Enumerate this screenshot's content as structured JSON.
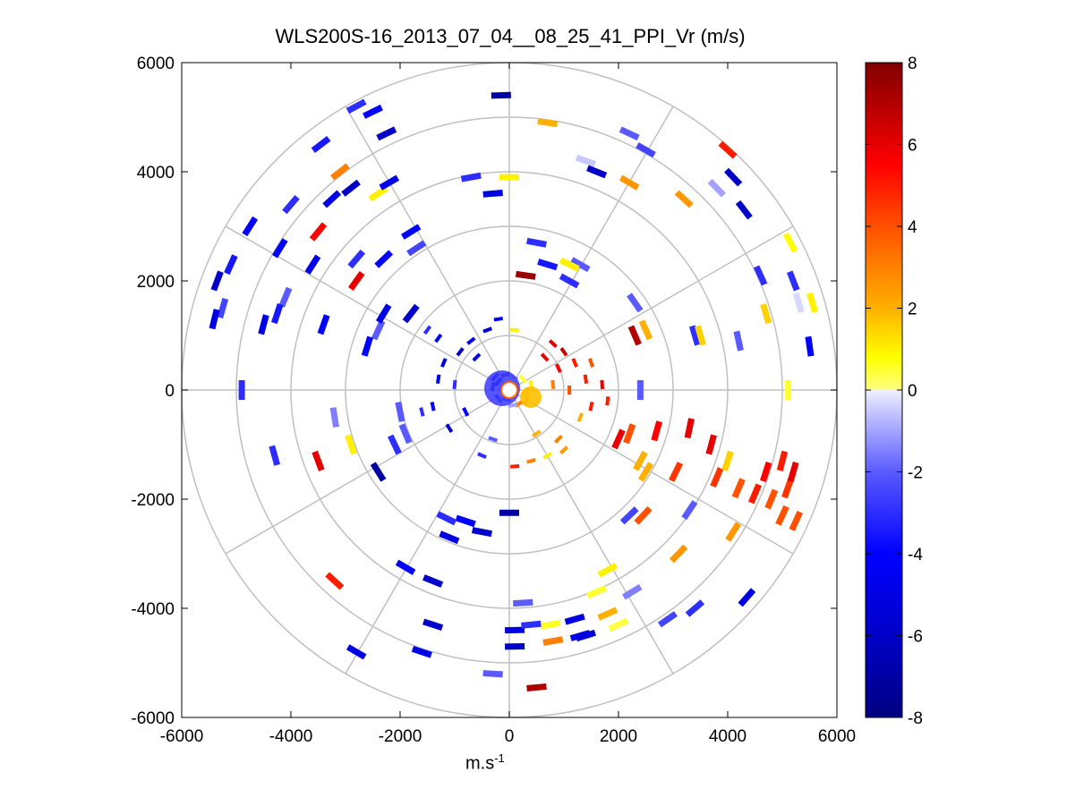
{
  "chart_data": {
    "type": "scatter",
    "subtype": "polar-ppi",
    "title": "WLS200S-16_2013_07_04__08_25_41_PPI_Vr (m/s)",
    "xlabel": "m.s",
    "xlabel_superscript": "-1",
    "ylabel": "",
    "xlim": [
      -6000,
      6000
    ],
    "ylim": [
      -6000,
      6000
    ],
    "xticks": [
      "-6000",
      "-4000",
      "-2000",
      "0",
      "2000",
      "4000",
      "6000"
    ],
    "yticks": [
      "6000",
      "4000",
      "2000",
      "0",
      "-2000",
      "-4000",
      "-6000"
    ],
    "grid": true,
    "polar_grid": {
      "ring_radii": [
        1000,
        2000,
        3000,
        4000,
        5000,
        6000
      ],
      "spoke_angles_deg": [
        0,
        30,
        60,
        90,
        120,
        150,
        180,
        210,
        240,
        270,
        300,
        330
      ]
    },
    "colorbar": {
      "min": -8,
      "max": 8,
      "ticks": [
        "8",
        "6",
        "4",
        "2",
        "0",
        "-2",
        "-4",
        "-6",
        "-8"
      ],
      "stops": [
        {
          "v": -8,
          "color": "#000080"
        },
        {
          "v": -6,
          "color": "#0000c8"
        },
        {
          "v": -4,
          "color": "#0000ff"
        },
        {
          "v": -2,
          "color": "#5a5aff"
        },
        {
          "v": -0.5,
          "color": "#c8c8ff"
        },
        {
          "v": 0,
          "color": "#f0f0ff"
        },
        {
          "v": 0.01,
          "color": "#ffff80"
        },
        {
          "v": 0.8,
          "color": "#ffff00"
        },
        {
          "v": 2,
          "color": "#ffb000"
        },
        {
          "v": 4,
          "color": "#ff5000"
        },
        {
          "v": 5.5,
          "color": "#ff0000"
        },
        {
          "v": 8,
          "color": "#800000"
        }
      ]
    },
    "points": [
      {
        "x": -150,
        "y": 5400,
        "v": -7
      },
      {
        "x": -2500,
        "y": 5100,
        "v": -4
      },
      {
        "x": -2800,
        "y": 5200,
        "v": -3
      },
      {
        "x": -2250,
        "y": 4700,
        "v": -6
      },
      {
        "x": -3450,
        "y": 4500,
        "v": -3.5
      },
      {
        "x": -3100,
        "y": 4000,
        "v": 3
      },
      {
        "x": -3250,
        "y": 3500,
        "v": -5
      },
      {
        "x": -2900,
        "y": 3700,
        "v": -6
      },
      {
        "x": -4750,
        "y": 3000,
        "v": -4
      },
      {
        "x": -4000,
        "y": 3400,
        "v": -3
      },
      {
        "x": -5350,
        "y": 2000,
        "v": -6
      },
      {
        "x": -5250,
        "y": 1500,
        "v": -2.5
      },
      {
        "x": -5100,
        "y": 2300,
        "v": -3.5
      },
      {
        "x": -5400,
        "y": 1300,
        "v": -5
      },
      {
        "x": -4200,
        "y": 2600,
        "v": -4
      },
      {
        "x": -3600,
        "y": 2300,
        "v": -5
      },
      {
        "x": -4100,
        "y": 1700,
        "v": -2
      },
      {
        "x": -4250,
        "y": 1400,
        "v": -3.5
      },
      {
        "x": -4500,
        "y": 1200,
        "v": -5
      },
      {
        "x": -3500,
        "y": 2900,
        "v": 5.5
      },
      {
        "x": -2400,
        "y": 3600,
        "v": 1
      },
      {
        "x": -2200,
        "y": 3800,
        "v": -5
      },
      {
        "x": -2800,
        "y": 2400,
        "v": -3
      },
      {
        "x": -2300,
        "y": 2400,
        "v": -4
      },
      {
        "x": -2800,
        "y": 2000,
        "v": 6
      },
      {
        "x": -3400,
        "y": 1200,
        "v": -4
      },
      {
        "x": -2400,
        "y": 1100,
        "v": -2
      },
      {
        "x": -2600,
        "y": 800,
        "v": -4
      },
      {
        "x": -2300,
        "y": 1400,
        "v": -5
      },
      {
        "x": -1800,
        "y": 1400,
        "v": -6
      },
      {
        "x": -1500,
        "y": 1100,
        "v": -3
      },
      {
        "x": -1300,
        "y": 950,
        "v": -4
      },
      {
        "x": -700,
        "y": 3900,
        "v": -3
      },
      {
        "x": -300,
        "y": 3600,
        "v": -5
      },
      {
        "x": 0,
        "y": 3900,
        "v": 1
      },
      {
        "x": -1700,
        "y": 2600,
        "v": -2.5
      },
      {
        "x": -1800,
        "y": 2900,
        "v": -4
      },
      {
        "x": -4900,
        "y": 0,
        "v": -3
      },
      {
        "x": -3200,
        "y": -500,
        "v": -1.5
      },
      {
        "x": -4300,
        "y": -1200,
        "v": -3
      },
      {
        "x": -3500,
        "y": -1300,
        "v": 6
      },
      {
        "x": -2900,
        "y": -1000,
        "v": 1
      },
      {
        "x": -2400,
        "y": -1500,
        "v": -7
      },
      {
        "x": -2100,
        "y": -1000,
        "v": -3
      },
      {
        "x": -1900,
        "y": -800,
        "v": -2
      },
      {
        "x": -1600,
        "y": -400,
        "v": -3
      },
      {
        "x": -2000,
        "y": -400,
        "v": -2
      },
      {
        "x": -3200,
        "y": -3500,
        "v": 5
      },
      {
        "x": -1900,
        "y": -3250,
        "v": -4
      },
      {
        "x": -1400,
        "y": -3500,
        "v": -6
      },
      {
        "x": -1400,
        "y": -4300,
        "v": -6
      },
      {
        "x": -2800,
        "y": -4800,
        "v": -5
      },
      {
        "x": -1600,
        "y": -4800,
        "v": -5
      },
      {
        "x": -300,
        "y": -5200,
        "v": -2
      },
      {
        "x": 500,
        "y": -5450,
        "v": 7
      },
      {
        "x": -800,
        "y": -2400,
        "v": -4
      },
      {
        "x": -1100,
        "y": -2700,
        "v": -5
      },
      {
        "x": -500,
        "y": -2600,
        "v": -6
      },
      {
        "x": 0,
        "y": -2250,
        "v": -7
      },
      {
        "x": -1150,
        "y": -2350,
        "v": -3
      },
      {
        "x": 250,
        "y": -3900,
        "v": -2
      },
      {
        "x": 750,
        "y": -4300,
        "v": 0.6
      },
      {
        "x": 100,
        "y": -4400,
        "v": -5
      },
      {
        "x": 400,
        "y": -4300,
        "v": -3
      },
      {
        "x": 800,
        "y": -4600,
        "v": 3
      },
      {
        "x": 1400,
        "y": -4500,
        "v": -6
      },
      {
        "x": 1200,
        "y": -4200,
        "v": -5
      },
      {
        "x": 1300,
        "y": -4500,
        "v": -5
      },
      {
        "x": 100,
        "y": -4700,
        "v": -6
      },
      {
        "x": 1800,
        "y": -4100,
        "v": 2
      },
      {
        "x": 1600,
        "y": -3700,
        "v": 0.5
      },
      {
        "x": 1800,
        "y": -3300,
        "v": 1
      },
      {
        "x": 2000,
        "y": -4300,
        "v": 0.4
      },
      {
        "x": 2250,
        "y": -3700,
        "v": -1.5
      },
      {
        "x": 2900,
        "y": -4200,
        "v": -2.5
      },
      {
        "x": 3400,
        "y": -4000,
        "v": -3
      },
      {
        "x": 4350,
        "y": -3800,
        "v": -5
      },
      {
        "x": 3100,
        "y": -3000,
        "v": 2.5
      },
      {
        "x": 4100,
        "y": -2600,
        "v": 2.5
      },
      {
        "x": 3300,
        "y": -2200,
        "v": -2
      },
      {
        "x": 2200,
        "y": -2300,
        "v": -2.5
      },
      {
        "x": 2450,
        "y": -2300,
        "v": 4
      },
      {
        "x": 2500,
        "y": -1500,
        "v": 2
      },
      {
        "x": 3050,
        "y": -1500,
        "v": 4.5
      },
      {
        "x": 3700,
        "y": -1000,
        "v": 6
      },
      {
        "x": 3800,
        "y": -1600,
        "v": 4.5
      },
      {
        "x": 4000,
        "y": -1300,
        "v": 1.5
      },
      {
        "x": 4200,
        "y": -1800,
        "v": 4
      },
      {
        "x": 4500,
        "y": -1900,
        "v": 5
      },
      {
        "x": 4700,
        "y": -1500,
        "v": 5.5
      },
      {
        "x": 4800,
        "y": -2000,
        "v": 4
      },
      {
        "x": 5100,
        "y": -1800,
        "v": 4.5
      },
      {
        "x": 5200,
        "y": -1500,
        "v": 6
      },
      {
        "x": 5000,
        "y": -2300,
        "v": 4
      },
      {
        "x": 5250,
        "y": -2400,
        "v": 4
      },
      {
        "x": 5000,
        "y": -1300,
        "v": 5
      },
      {
        "x": 3300,
        "y": -700,
        "v": 6
      },
      {
        "x": 2700,
        "y": -750,
        "v": 5.5
      },
      {
        "x": 2200,
        "y": -800,
        "v": 4
      },
      {
        "x": 2400,
        "y": -1300,
        "v": 2
      },
      {
        "x": 2000,
        "y": -900,
        "v": 6
      },
      {
        "x": 700,
        "y": 4900,
        "v": 2
      },
      {
        "x": 2200,
        "y": 4700,
        "v": -2
      },
      {
        "x": 2500,
        "y": 4400,
        "v": -2.5
      },
      {
        "x": 1400,
        "y": 4200,
        "v": -0.5
      },
      {
        "x": 1600,
        "y": 4000,
        "v": -6
      },
      {
        "x": 2200,
        "y": 3800,
        "v": 2.5
      },
      {
        "x": 3200,
        "y": 3500,
        "v": 2.5
      },
      {
        "x": 4000,
        "y": 4400,
        "v": 5
      },
      {
        "x": 4100,
        "y": 3900,
        "v": -6
      },
      {
        "x": 4300,
        "y": 3300,
        "v": -6
      },
      {
        "x": 3800,
        "y": 3700,
        "v": -1
      },
      {
        "x": 5150,
        "y": 2700,
        "v": 0.8
      },
      {
        "x": 4600,
        "y": 2100,
        "v": -3
      },
      {
        "x": 5200,
        "y": 2000,
        "v": -3
      },
      {
        "x": 5300,
        "y": 1600,
        "v": -0.3
      },
      {
        "x": 5550,
        "y": 1600,
        "v": 1
      },
      {
        "x": 4700,
        "y": 1400,
        "v": 1.5
      },
      {
        "x": 5500,
        "y": 800,
        "v": -4
      },
      {
        "x": 5100,
        "y": 0,
        "v": 0.5
      },
      {
        "x": 3400,
        "y": 1000,
        "v": -3
      },
      {
        "x": 3500,
        "y": 1000,
        "v": 1.5
      },
      {
        "x": 4200,
        "y": 900,
        "v": -2
      },
      {
        "x": 2300,
        "y": 1000,
        "v": 7
      },
      {
        "x": 2500,
        "y": 1100,
        "v": 2
      },
      {
        "x": 2400,
        "y": 0,
        "v": -2
      },
      {
        "x": 2300,
        "y": 1600,
        "v": -2
      },
      {
        "x": 1300,
        "y": 2300,
        "v": -2
      },
      {
        "x": 1100,
        "y": 2000,
        "v": -3
      },
      {
        "x": 1100,
        "y": 2300,
        "v": 1
      },
      {
        "x": 500,
        "y": 2700,
        "v": -3
      },
      {
        "x": 300,
        "y": 2100,
        "v": 7.5
      },
      {
        "x": 700,
        "y": 2300,
        "v": -3.5
      },
      {
        "x": -70,
        "y": 280,
        "v": -3
      },
      {
        "x": -200,
        "y": 150,
        "v": -4
      },
      {
        "x": -300,
        "y": 60,
        "v": -5
      },
      {
        "x": -260,
        "y": 240,
        "v": -6
      },
      {
        "x": -120,
        "y": 60,
        "v": -4
      },
      {
        "x": -50,
        "y": -170,
        "v": -2
      },
      {
        "x": -200,
        "y": -150,
        "v": -3
      },
      {
        "x": 80,
        "y": 230,
        "v": -1
      },
      {
        "x": 250,
        "y": -70,
        "v": 1
      },
      {
        "x": 320,
        "y": -40,
        "v": 2
      },
      {
        "x": 300,
        "y": -200,
        "v": 2.5
      },
      {
        "x": 180,
        "y": -250,
        "v": 3
      },
      {
        "x": 400,
        "y": 100,
        "v": 1
      },
      {
        "x": 250,
        "y": 200,
        "v": 0.5
      },
      {
        "x": 60,
        "y": -280,
        "v": -1
      },
      {
        "x": 150,
        "y": 90,
        "v": 0.3
      },
      {
        "x": 800,
        "y": 850,
        "v": 6
      },
      {
        "x": 1000,
        "y": 700,
        "v": 6.5
      },
      {
        "x": 1200,
        "y": 500,
        "v": 5
      },
      {
        "x": 900,
        "y": 400,
        "v": 5.5
      },
      {
        "x": 650,
        "y": 600,
        "v": 6
      },
      {
        "x": 1400,
        "y": 200,
        "v": 5
      },
      {
        "x": 1100,
        "y": 0,
        "v": 4
      },
      {
        "x": 800,
        "y": 100,
        "v": 3
      },
      {
        "x": 1500,
        "y": -300,
        "v": 5
      },
      {
        "x": 1300,
        "y": -500,
        "v": 2
      },
      {
        "x": 900,
        "y": -900,
        "v": 3
      },
      {
        "x": 1000,
        "y": -1100,
        "v": 2.5
      },
      {
        "x": 700,
        "y": -1200,
        "v": 1
      },
      {
        "x": 400,
        "y": -1300,
        "v": 3
      },
      {
        "x": 100,
        "y": -1400,
        "v": 5
      },
      {
        "x": 500,
        "y": -800,
        "v": 2
      },
      {
        "x": 1500,
        "y": 500,
        "v": 4
      },
      {
        "x": 1700,
        "y": 100,
        "v": 6
      },
      {
        "x": 1800,
        "y": -200,
        "v": 5
      },
      {
        "x": -900,
        "y": 700,
        "v": -6
      },
      {
        "x": -1200,
        "y": 500,
        "v": -5
      },
      {
        "x": -700,
        "y": 900,
        "v": -4
      },
      {
        "x": -400,
        "y": 1100,
        "v": -6
      },
      {
        "x": -1300,
        "y": 200,
        "v": -5
      },
      {
        "x": -1000,
        "y": 100,
        "v": -3
      },
      {
        "x": -800,
        "y": -400,
        "v": -4
      },
      {
        "x": -1100,
        "y": -700,
        "v": -6
      },
      {
        "x": -500,
        "y": -1200,
        "v": -3
      },
      {
        "x": -300,
        "y": -900,
        "v": -2
      },
      {
        "x": -1400,
        "y": -300,
        "v": -4
      },
      {
        "x": -600,
        "y": 600,
        "v": -5
      },
      {
        "x": -200,
        "y": 1300,
        "v": -5
      },
      {
        "x": 100,
        "y": 1100,
        "v": 1
      }
    ]
  }
}
